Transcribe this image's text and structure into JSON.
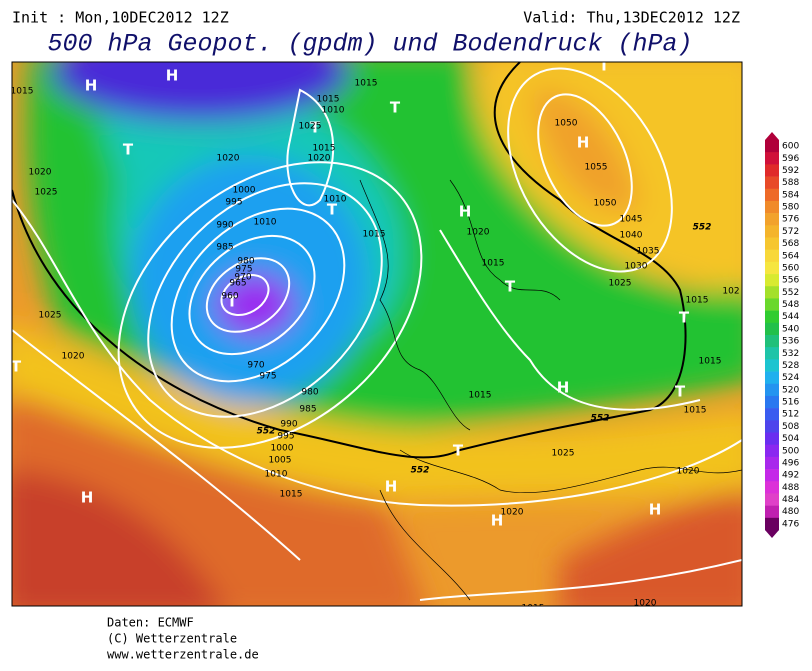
{
  "header": {
    "init": "Init : Mon,10DEC2012 12Z",
    "valid": "Valid: Thu,13DEC2012 12Z",
    "title": "500 hPa Geopot. (gpdm) und Bodendruck (hPa)"
  },
  "map": {
    "pressure_centers": [
      "H",
      "H",
      "T",
      "T",
      "T",
      "T",
      "H",
      "T",
      "H",
      "T",
      "T",
      "H",
      "H",
      "H",
      "H",
      "T",
      "T",
      "T",
      "H",
      "T"
    ],
    "isobar_labels": [
      "1015",
      "1015",
      "1015",
      "1010",
      "1025",
      "1015",
      "1020",
      "1020",
      "1020",
      "1025",
      "1000",
      "995",
      "990",
      "1010",
      "1010",
      "985",
      "980",
      "975",
      "970",
      "965",
      "960",
      "1015",
      "1020",
      "1015",
      "1050",
      "1055",
      "1050",
      "1045",
      "1040",
      "1035",
      "1030",
      "1025",
      "1015",
      "102",
      "1025",
      "1020",
      "970",
      "975",
      "980",
      "985",
      "990",
      "995",
      "1000",
      "1005",
      "1010",
      "1015",
      "1015",
      "1025",
      "1015",
      "1015",
      "1020",
      "1020",
      "1015",
      "1020"
    ],
    "contour_labels": [
      "552",
      "552",
      "552",
      "552"
    ]
  },
  "colorbar": {
    "ticks": [
      600,
      596,
      592,
      588,
      584,
      580,
      576,
      572,
      568,
      564,
      560,
      556,
      552,
      548,
      544,
      540,
      536,
      532,
      528,
      524,
      520,
      516,
      512,
      508,
      504,
      500,
      496,
      492,
      488,
      484,
      480,
      476
    ]
  },
  "footer": {
    "lines": [
      "Daten: ECMWF",
      "(C) Wetterzentrale",
      "www.wetterzentrale.de"
    ]
  }
}
